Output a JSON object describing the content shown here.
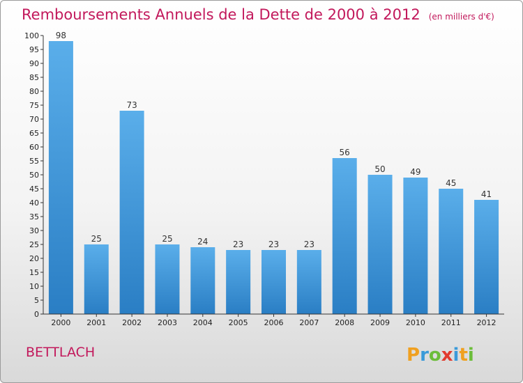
{
  "header": {
    "title": "Remboursements Annuels de la Dette de 2000 à 2012",
    "unit": "(en milliers d'€)"
  },
  "footer": {
    "commune": "BETTLACH",
    "logo_text": "Proxiti"
  },
  "colors": {
    "title": "#c2185b",
    "bar_top": "#5aaeea",
    "bar_bottom": "#2a7ec4"
  },
  "chart_data": {
    "type": "bar",
    "title": "Remboursements Annuels de la Dette de 2000 à 2012",
    "subtitle": "(en milliers d'€)",
    "xlabel": "",
    "ylabel": "",
    "categories": [
      "2000",
      "2001",
      "2002",
      "2003",
      "2004",
      "2005",
      "2006",
      "2007",
      "2008",
      "2009",
      "2010",
      "2011",
      "2012"
    ],
    "values": [
      98,
      25,
      73,
      25,
      24,
      23,
      23,
      23,
      56,
      50,
      49,
      45,
      41
    ],
    "ylim": [
      0,
      100
    ],
    "ytick_step": 5,
    "grid": false,
    "legend": "none",
    "data_labels": true
  }
}
